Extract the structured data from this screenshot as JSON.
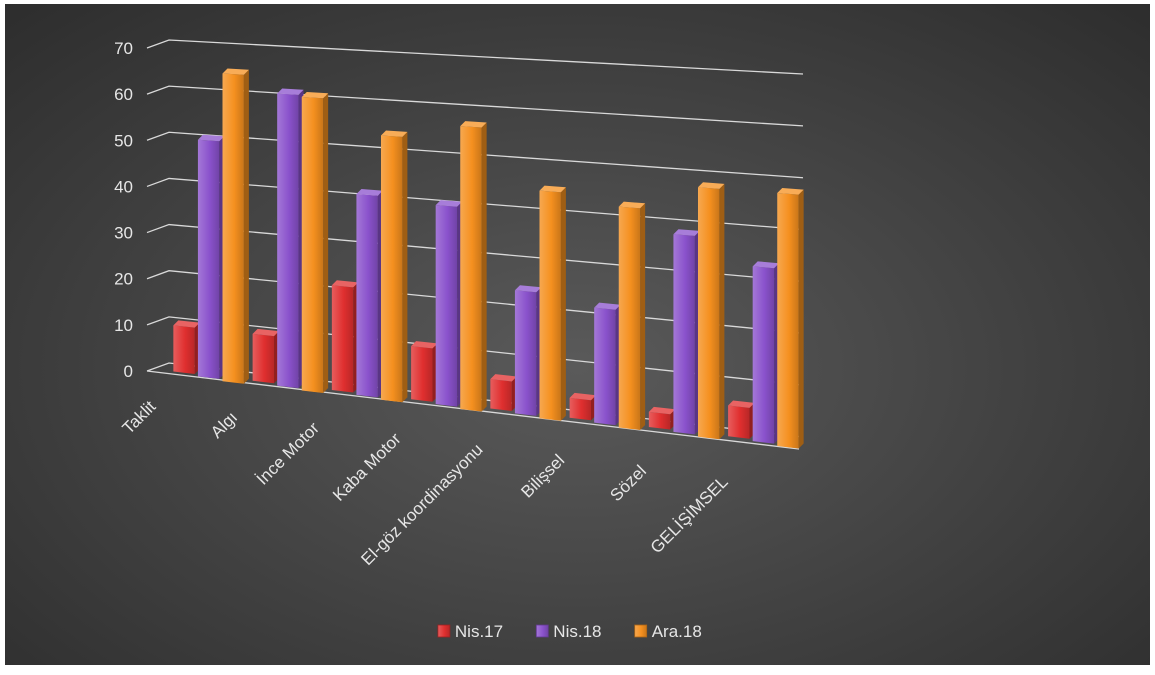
{
  "chart_data": {
    "type": "bar",
    "variant": "3d-clustered-column",
    "title": "",
    "xlabel": "",
    "ylabel": "",
    "ylim": [
      0,
      70
    ],
    "yticks": [
      0,
      10,
      20,
      30,
      40,
      50,
      60,
      70
    ],
    "grid": true,
    "legend_position": "bottom",
    "categories": [
      "Taklit",
      "Algı",
      "İnce Motor",
      "Kaba Motor",
      "El-göz koordinasyonu",
      "Bilişsel",
      "Sözel",
      "GELİŞİMSEL"
    ],
    "series": [
      {
        "name": "Nis.17",
        "color": "#e02f2f",
        "values": [
          10,
          10,
          22,
          11,
          6,
          4,
          3,
          6
        ]
      },
      {
        "name": "Nis.18",
        "color": "#8a52cc",
        "values": [
          51,
          62,
          42,
          41,
          25,
          23,
          39,
          34
        ]
      },
      {
        "name": "Ara.18",
        "color": "#f5901f",
        "values": [
          66,
          62,
          55,
          58,
          46,
          44,
          49,
          49
        ]
      }
    ]
  }
}
